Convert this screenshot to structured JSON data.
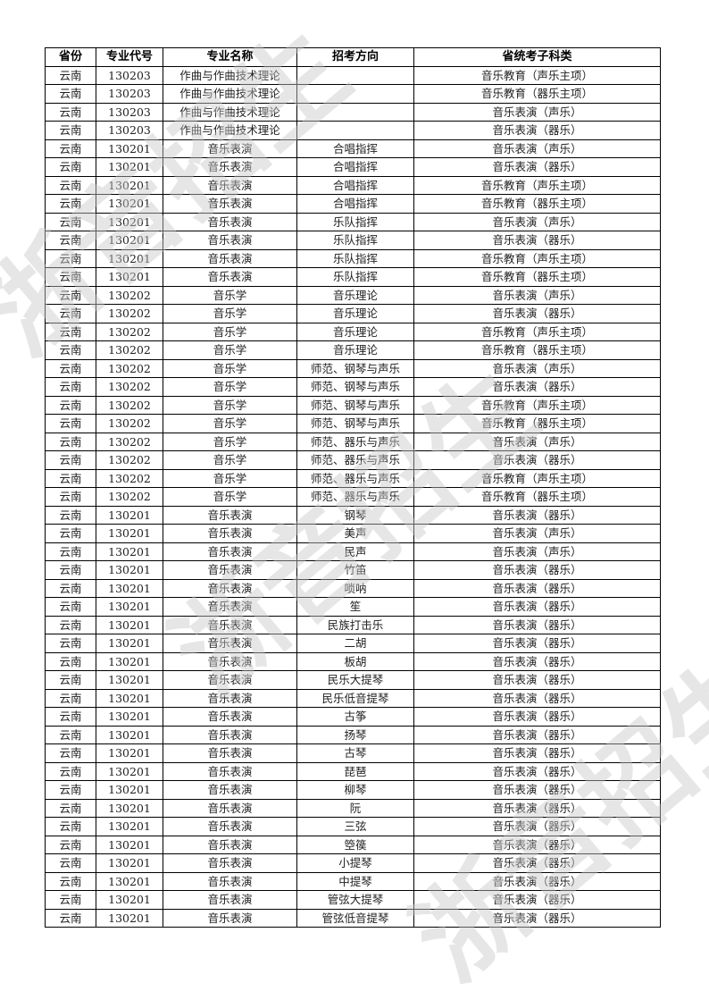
{
  "watermark": "浙音招生",
  "table": {
    "headers": [
      "省份",
      "专业代号",
      "专业名称",
      "招考方向",
      "省统考子科类"
    ],
    "rows": [
      [
        "云南",
        "130203",
        "作曲与作曲技术理论",
        "",
        "音乐教育（声乐主项）"
      ],
      [
        "云南",
        "130203",
        "作曲与作曲技术理论",
        "",
        "音乐教育（器乐主项）"
      ],
      [
        "云南",
        "130203",
        "作曲与作曲技术理论",
        "",
        "音乐表演（声乐）"
      ],
      [
        "云南",
        "130203",
        "作曲与作曲技术理论",
        "",
        "音乐表演（器乐）"
      ],
      [
        "云南",
        "130201",
        "音乐表演",
        "合唱指挥",
        "音乐表演（声乐）"
      ],
      [
        "云南",
        "130201",
        "音乐表演",
        "合唱指挥",
        "音乐表演（器乐）"
      ],
      [
        "云南",
        "130201",
        "音乐表演",
        "合唱指挥",
        "音乐教育（声乐主项）"
      ],
      [
        "云南",
        "130201",
        "音乐表演",
        "合唱指挥",
        "音乐教育（器乐主项）"
      ],
      [
        "云南",
        "130201",
        "音乐表演",
        "乐队指挥",
        "音乐表演（声乐）"
      ],
      [
        "云南",
        "130201",
        "音乐表演",
        "乐队指挥",
        "音乐表演（器乐）"
      ],
      [
        "云南",
        "130201",
        "音乐表演",
        "乐队指挥",
        "音乐教育（声乐主项）"
      ],
      [
        "云南",
        "130201",
        "音乐表演",
        "乐队指挥",
        "音乐教育（器乐主项）"
      ],
      [
        "云南",
        "130202",
        "音乐学",
        "音乐理论",
        "音乐表演（声乐）"
      ],
      [
        "云南",
        "130202",
        "音乐学",
        "音乐理论",
        "音乐表演（器乐）"
      ],
      [
        "云南",
        "130202",
        "音乐学",
        "音乐理论",
        "音乐教育（声乐主项）"
      ],
      [
        "云南",
        "130202",
        "音乐学",
        "音乐理论",
        "音乐教育（器乐主项）"
      ],
      [
        "云南",
        "130202",
        "音乐学",
        "师范、钢琴与声乐",
        "音乐表演（声乐）"
      ],
      [
        "云南",
        "130202",
        "音乐学",
        "师范、钢琴与声乐",
        "音乐表演（器乐）"
      ],
      [
        "云南",
        "130202",
        "音乐学",
        "师范、钢琴与声乐",
        "音乐教育（声乐主项）"
      ],
      [
        "云南",
        "130202",
        "音乐学",
        "师范、钢琴与声乐",
        "音乐教育（器乐主项）"
      ],
      [
        "云南",
        "130202",
        "音乐学",
        "师范、器乐与声乐",
        "音乐表演（声乐）"
      ],
      [
        "云南",
        "130202",
        "音乐学",
        "师范、器乐与声乐",
        "音乐表演（器乐）"
      ],
      [
        "云南",
        "130202",
        "音乐学",
        "师范、器乐与声乐",
        "音乐教育（声乐主项）"
      ],
      [
        "云南",
        "130202",
        "音乐学",
        "师范、器乐与声乐",
        "音乐教育（器乐主项）"
      ],
      [
        "云南",
        "130201",
        "音乐表演",
        "钢琴",
        "音乐表演（器乐）"
      ],
      [
        "云南",
        "130201",
        "音乐表演",
        "美声",
        "音乐表演（声乐）"
      ],
      [
        "云南",
        "130201",
        "音乐表演",
        "民声",
        "音乐表演（声乐）"
      ],
      [
        "云南",
        "130201",
        "音乐表演",
        "竹笛",
        "音乐表演（器乐）"
      ],
      [
        "云南",
        "130201",
        "音乐表演",
        "唢呐",
        "音乐表演（器乐）"
      ],
      [
        "云南",
        "130201",
        "音乐表演",
        "笙",
        "音乐表演（器乐）"
      ],
      [
        "云南",
        "130201",
        "音乐表演",
        "民族打击乐",
        "音乐表演（器乐）"
      ],
      [
        "云南",
        "130201",
        "音乐表演",
        "二胡",
        "音乐表演（器乐）"
      ],
      [
        "云南",
        "130201",
        "音乐表演",
        "板胡",
        "音乐表演（器乐）"
      ],
      [
        "云南",
        "130201",
        "音乐表演",
        "民乐大提琴",
        "音乐表演（器乐）"
      ],
      [
        "云南",
        "130201",
        "音乐表演",
        "民乐低音提琴",
        "音乐表演（器乐）"
      ],
      [
        "云南",
        "130201",
        "音乐表演",
        "古筝",
        "音乐表演（器乐）"
      ],
      [
        "云南",
        "130201",
        "音乐表演",
        "扬琴",
        "音乐表演（器乐）"
      ],
      [
        "云南",
        "130201",
        "音乐表演",
        "古琴",
        "音乐表演（器乐）"
      ],
      [
        "云南",
        "130201",
        "音乐表演",
        "琵琶",
        "音乐表演（器乐）"
      ],
      [
        "云南",
        "130201",
        "音乐表演",
        "柳琴",
        "音乐表演（器乐）"
      ],
      [
        "云南",
        "130201",
        "音乐表演",
        "阮",
        "音乐表演（器乐）"
      ],
      [
        "云南",
        "130201",
        "音乐表演",
        "三弦",
        "音乐表演（器乐）"
      ],
      [
        "云南",
        "130201",
        "音乐表演",
        "箜篌",
        "音乐表演（器乐）"
      ],
      [
        "云南",
        "130201",
        "音乐表演",
        "小提琴",
        "音乐表演（器乐）"
      ],
      [
        "云南",
        "130201",
        "音乐表演",
        "中提琴",
        "音乐表演（器乐）"
      ],
      [
        "云南",
        "130201",
        "音乐表演",
        "管弦大提琴",
        "音乐表演（器乐）"
      ],
      [
        "云南",
        "130201",
        "音乐表演",
        "管弦低音提琴",
        "音乐表演（器乐）"
      ]
    ]
  }
}
